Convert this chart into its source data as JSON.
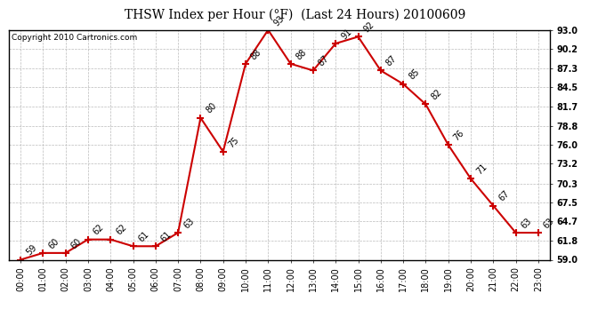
{
  "title": "THSW Index per Hour (°F)  (Last 24 Hours) 20100609",
  "copyright": "Copyright 2010 Cartronics.com",
  "hours": [
    0,
    1,
    2,
    3,
    4,
    5,
    6,
    7,
    8,
    9,
    10,
    11,
    12,
    13,
    14,
    15,
    16,
    17,
    18,
    19,
    20,
    21,
    22,
    23
  ],
  "values": [
    59,
    60,
    60,
    62,
    62,
    61,
    61,
    63,
    80,
    75,
    88,
    93,
    88,
    87,
    91,
    92,
    87,
    85,
    82,
    76,
    71,
    67,
    63,
    63
  ],
  "x_labels": [
    "00:00",
    "01:00",
    "02:00",
    "03:00",
    "04:00",
    "05:00",
    "06:00",
    "07:00",
    "08:00",
    "09:00",
    "10:00",
    "11:00",
    "12:00",
    "13:00",
    "14:00",
    "15:00",
    "16:00",
    "17:00",
    "18:00",
    "19:00",
    "20:00",
    "21:00",
    "22:00",
    "23:00"
  ],
  "y_ticks": [
    59.0,
    61.8,
    64.7,
    67.5,
    70.3,
    73.2,
    76.0,
    78.8,
    81.7,
    84.5,
    87.3,
    90.2,
    93.0
  ],
  "ylim": [
    59.0,
    93.0
  ],
  "line_color": "#cc0000",
  "marker_color": "#cc0000",
  "bg_color": "#ffffff",
  "grid_color": "#bbbbbb",
  "title_fontsize": 10,
  "label_fontsize": 7,
  "tick_fontsize": 7,
  "copyright_fontsize": 6.5
}
